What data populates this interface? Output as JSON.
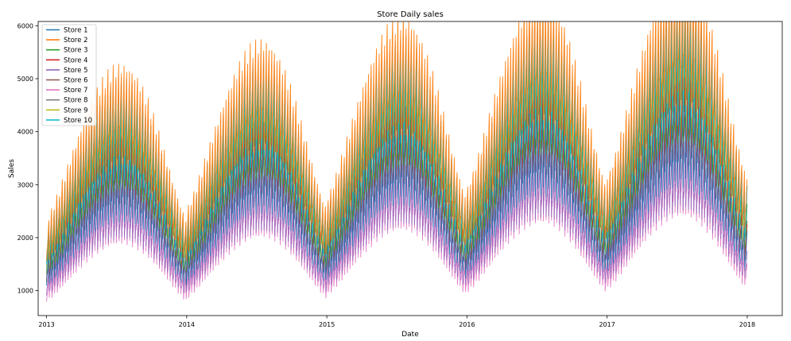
{
  "chart_data": {
    "type": "line",
    "title": "Store Daily sales",
    "xlabel": "Date",
    "ylabel": "Sales",
    "xlim": [
      2012.94,
      2018.25
    ],
    "ylim": [
      530,
      6080
    ],
    "x_ticks": [
      2013,
      2014,
      2015,
      2016,
      2017,
      2018
    ],
    "x_tick_labels": [
      "2013",
      "2014",
      "2015",
      "2016",
      "2017",
      "2018"
    ],
    "y_ticks": [
      1000,
      2000,
      3000,
      4000,
      5000,
      6000
    ],
    "y_tick_labels": [
      "1000",
      "2000",
      "3000",
      "4000",
      "5000",
      "6000"
    ],
    "legend_position": "top-left",
    "grid": false,
    "pattern": {
      "description": "Daily sales with strong weekly oscillation and annual seasonality peaking mid-year",
      "year_start": 2013,
      "years": 5,
      "weekly_amplitude_fraction": 0.22,
      "annual_peak_x_offset": 0.54
    },
    "series": [
      {
        "name": "Store 1",
        "color": "#1f77b4",
        "annual_trough": 1350,
        "annual_peak": 2900,
        "yearly_growth": 0.07,
        "order": 6
      },
      {
        "name": "Store 2",
        "color": "#ff7f0e",
        "annual_trough": 1900,
        "annual_peak": 4250,
        "yearly_growth": 0.085,
        "order": 10
      },
      {
        "name": "Store 3",
        "color": "#2ca02c",
        "annual_trough": 1650,
        "annual_peak": 3650,
        "yearly_growth": 0.08,
        "order": 7
      },
      {
        "name": "Store 4",
        "color": "#d62728",
        "annual_trough": 1400,
        "annual_peak": 3200,
        "yearly_growth": 0.075,
        "order": 5
      },
      {
        "name": "Store 5",
        "color": "#9467bd",
        "annual_trough": 1150,
        "annual_peak": 2450,
        "yearly_growth": 0.07,
        "order": 3
      },
      {
        "name": "Store 6",
        "color": "#8c564b",
        "annual_trough": 1420,
        "annual_peak": 3150,
        "yearly_growth": 0.075,
        "order": 4
      },
      {
        "name": "Store 7",
        "color": "#e377c2",
        "annual_trough": 1000,
        "annual_peak": 2350,
        "yearly_growth": 0.07,
        "order": 2
      },
      {
        "name": "Store 8",
        "color": "#7f7f7f",
        "annual_trough": 1780,
        "annual_peak": 4000,
        "yearly_growth": 0.08,
        "order": 8
      },
      {
        "name": "Store 9",
        "color": "#bcbd22",
        "annual_trough": 1450,
        "annual_peak": 3300,
        "yearly_growth": 0.075,
        "order": 1
      },
      {
        "name": "Store 10",
        "color": "#17becf",
        "annual_trough": 1820,
        "annual_peak": 3900,
        "yearly_growth": 0.08,
        "order": 9
      }
    ]
  }
}
